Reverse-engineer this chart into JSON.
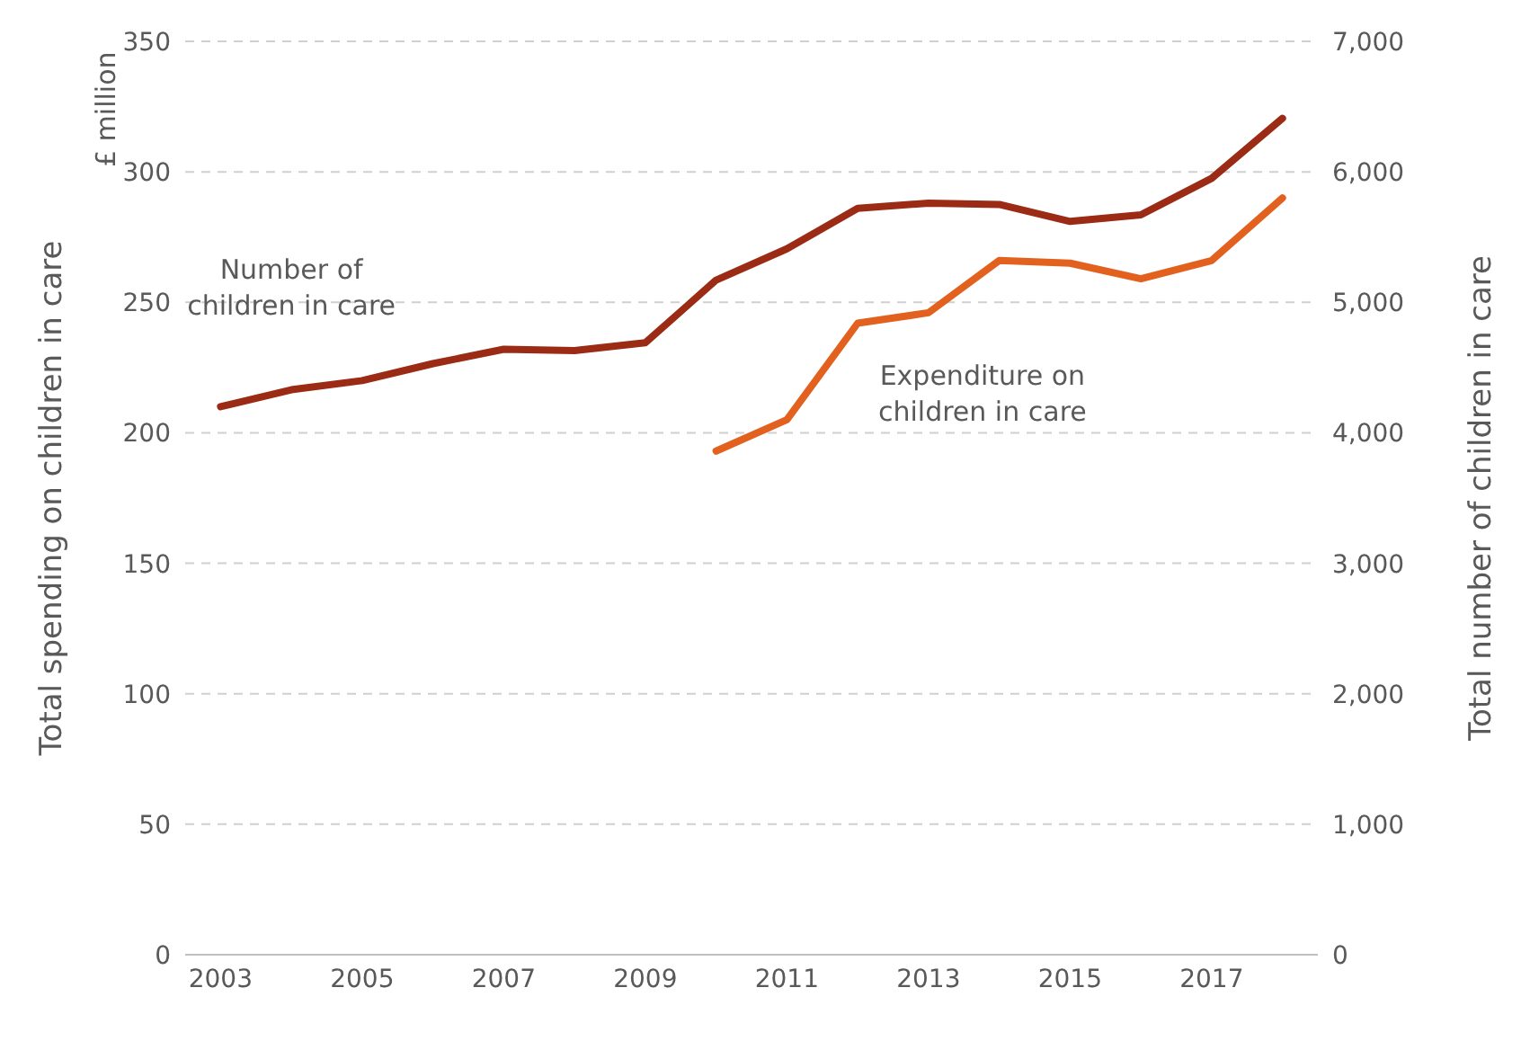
{
  "chart_data": {
    "type": "line",
    "ylabel": "Total spending on children in care",
    "y2label": "Total number of children in care",
    "annotations": [
      "£ million"
    ],
    "x": [
      2003,
      2004,
      2005,
      2006,
      2007,
      2008,
      2009,
      2010,
      2011,
      2012,
      2013,
      2014,
      2015,
      2016,
      2017,
      2018
    ],
    "xlim": [
      2002.5,
      2018.5
    ],
    "xticks": [
      2003,
      2005,
      2007,
      2009,
      2011,
      2013,
      2015,
      2017
    ],
    "ylim": [
      0,
      350
    ],
    "yticks": [
      0,
      50,
      100,
      150,
      200,
      250,
      300,
      350
    ],
    "y2lim": [
      0,
      7000
    ],
    "y2ticks": [
      {
        "value": 0,
        "label": "0"
      },
      {
        "value": 1000,
        "label": "1,000"
      },
      {
        "value": 2000,
        "label": "2,000"
      },
      {
        "value": 3000,
        "label": "3,000"
      },
      {
        "value": 4000,
        "label": "4,000"
      },
      {
        "value": 5000,
        "label": "5,000"
      },
      {
        "value": 6000,
        "label": "6,000"
      },
      {
        "value": 7000,
        "label": "7,000"
      }
    ],
    "grid": "y",
    "legend": false,
    "marker": "none",
    "line_style": "solid",
    "series": [
      {
        "name": "Number of children in care",
        "color": "#9b2b14",
        "axis": "y2",
        "values": [
          4200,
          4330,
          4400,
          4530,
          4640,
          4630,
          4690,
          5170,
          5410,
          5720,
          5760,
          5750,
          5620,
          5670,
          5950,
          6410
        ]
      },
      {
        "name": "Expenditure on children in care",
        "color": "#e2611f",
        "values": [
          null,
          null,
          null,
          null,
          null,
          null,
          null,
          193,
          205,
          242,
          246,
          266,
          265,
          259,
          266,
          290
        ]
      }
    ]
  }
}
